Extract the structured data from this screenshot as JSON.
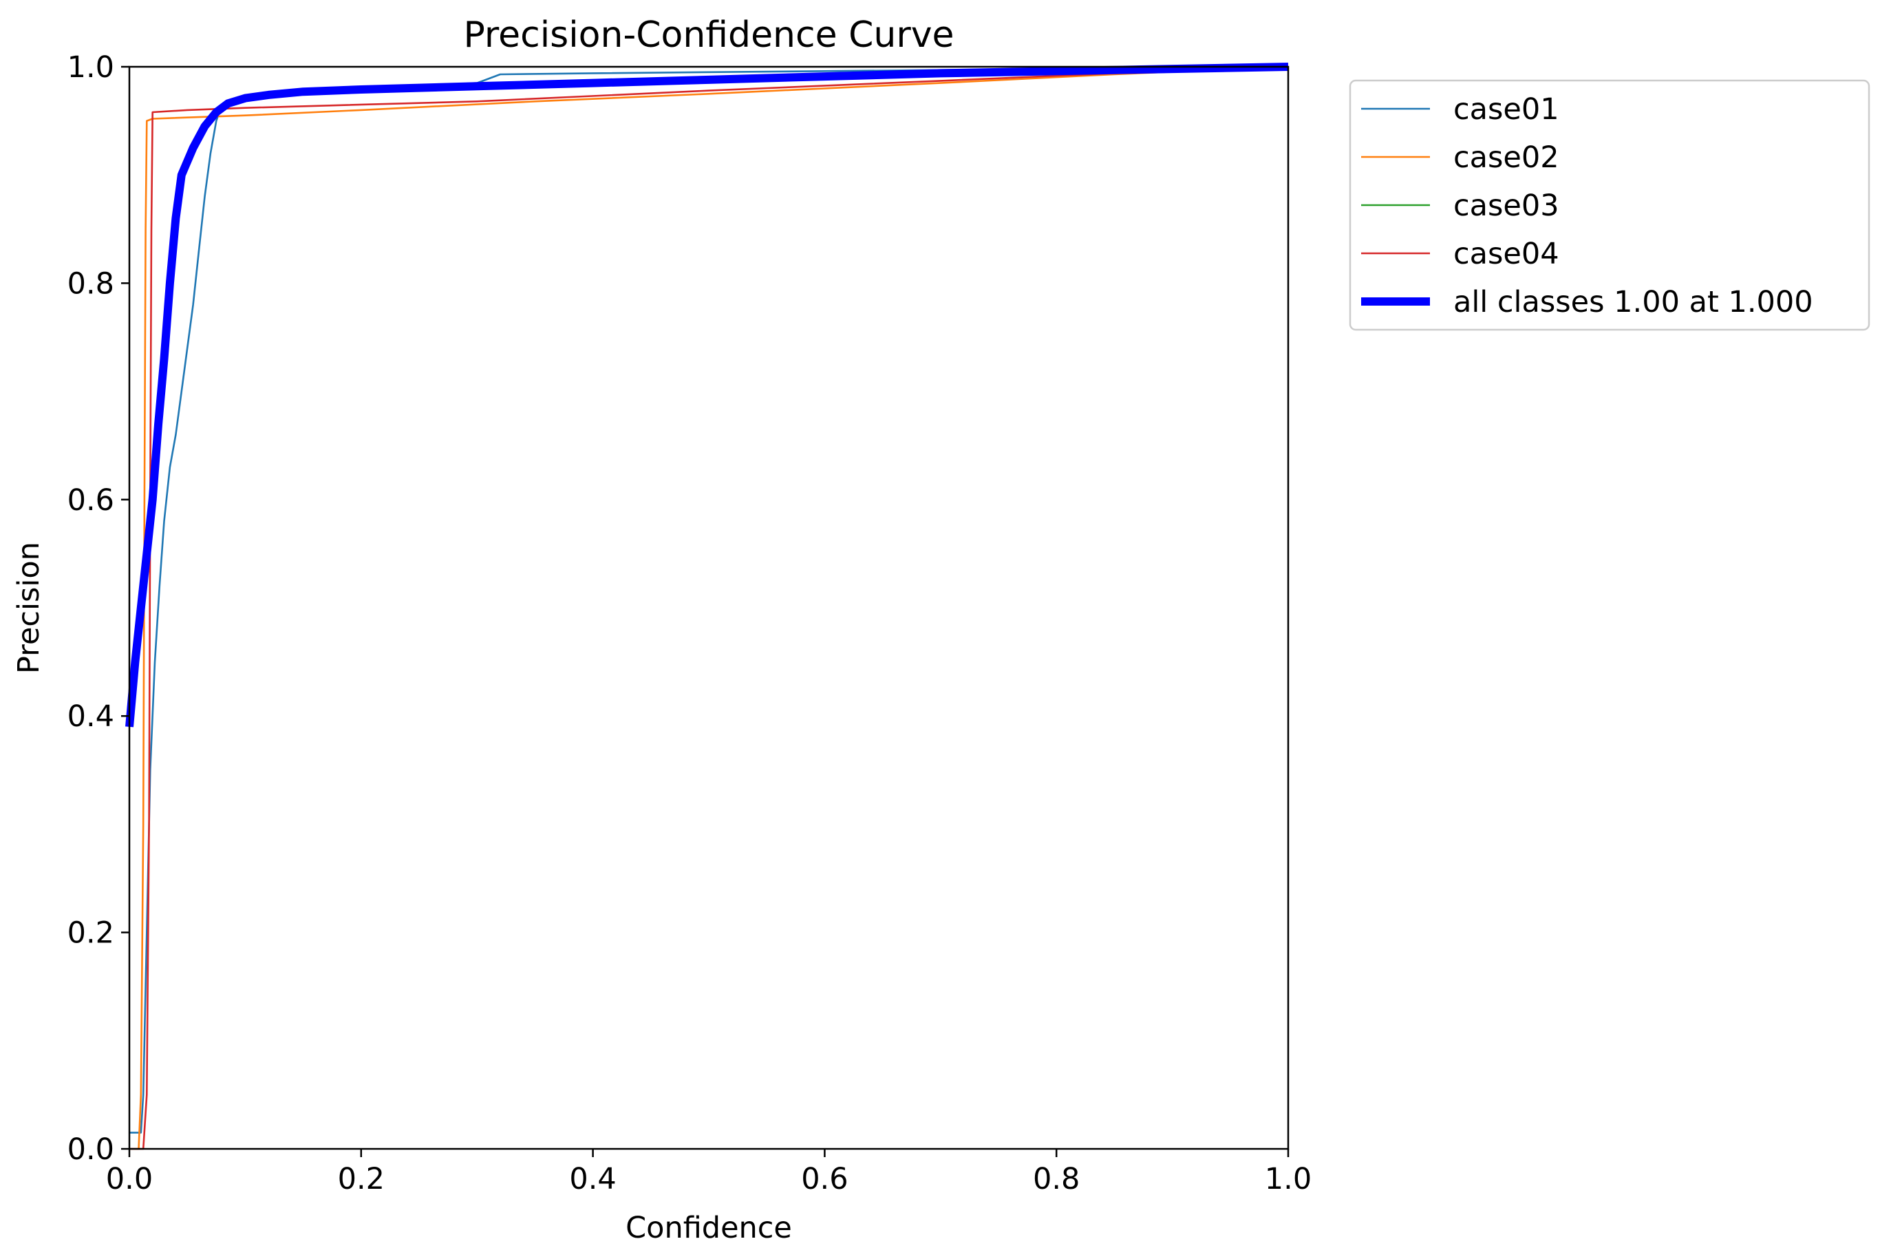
{
  "chart_data": {
    "type": "line",
    "title": "Precision-Confidence Curve",
    "xlabel": "Confidence",
    "ylabel": "Precision",
    "xlim": [
      0,
      1
    ],
    "ylim": [
      0,
      1
    ],
    "xticks": [
      "0.0",
      "0.2",
      "0.4",
      "0.6",
      "0.8",
      "1.0"
    ],
    "yticks": [
      "0.0",
      "0.2",
      "0.4",
      "0.6",
      "0.8",
      "1.0"
    ],
    "grid": false,
    "legend_position": "outside-top-right",
    "series": [
      {
        "name": "case01",
        "color": "#1f77b4",
        "width": "thin",
        "points": [
          [
            0.0,
            0.015
          ],
          [
            0.01,
            0.015
          ],
          [
            0.012,
            0.05
          ],
          [
            0.015,
            0.2
          ],
          [
            0.018,
            0.35
          ],
          [
            0.022,
            0.45
          ],
          [
            0.026,
            0.52
          ],
          [
            0.03,
            0.58
          ],
          [
            0.035,
            0.63
          ],
          [
            0.04,
            0.66
          ],
          [
            0.045,
            0.7
          ],
          [
            0.05,
            0.74
          ],
          [
            0.055,
            0.78
          ],
          [
            0.06,
            0.83
          ],
          [
            0.065,
            0.88
          ],
          [
            0.07,
            0.92
          ],
          [
            0.075,
            0.95
          ],
          [
            0.08,
            0.965
          ],
          [
            0.09,
            0.97
          ],
          [
            0.1,
            0.97
          ],
          [
            0.13,
            0.975
          ],
          [
            0.15,
            0.978
          ],
          [
            0.2,
            0.98
          ],
          [
            0.3,
            0.985
          ],
          [
            0.32,
            0.993
          ],
          [
            0.4,
            0.994
          ],
          [
            0.6,
            0.996
          ],
          [
            0.8,
            0.998
          ],
          [
            1.0,
            1.0
          ]
        ]
      },
      {
        "name": "case02",
        "color": "#ff7f0e",
        "width": "thin",
        "points": [
          [
            0.0,
            0.0
          ],
          [
            0.008,
            0.0
          ],
          [
            0.01,
            0.05
          ],
          [
            0.012,
            0.3
          ],
          [
            0.013,
            0.6
          ],
          [
            0.014,
            0.85
          ],
          [
            0.015,
            0.95
          ],
          [
            0.02,
            0.952
          ],
          [
            0.1,
            0.955
          ],
          [
            0.2,
            0.96
          ],
          [
            0.35,
            0.968
          ],
          [
            0.5,
            0.975
          ],
          [
            0.7,
            0.985
          ],
          [
            0.85,
            0.993
          ],
          [
            1.0,
            1.0
          ]
        ]
      },
      {
        "name": "case03",
        "color": "#2ca02c",
        "width": "thin",
        "points": []
      },
      {
        "name": "case04",
        "color": "#d62728",
        "width": "thin",
        "points": [
          [
            0.0,
            0.0
          ],
          [
            0.012,
            0.0
          ],
          [
            0.015,
            0.05
          ],
          [
            0.017,
            0.3
          ],
          [
            0.018,
            0.6
          ],
          [
            0.019,
            0.85
          ],
          [
            0.02,
            0.958
          ],
          [
            0.05,
            0.96
          ],
          [
            0.1,
            0.962
          ],
          [
            0.3,
            0.968
          ],
          [
            0.5,
            0.978
          ],
          [
            0.7,
            0.987
          ],
          [
            0.85,
            0.994
          ],
          [
            1.0,
            1.0
          ]
        ]
      },
      {
        "name": "all classes 1.00 at 1.000",
        "color": "#0000ff",
        "width": "thick",
        "points": [
          [
            0.0,
            0.39
          ],
          [
            0.005,
            0.45
          ],
          [
            0.01,
            0.5
          ],
          [
            0.015,
            0.55
          ],
          [
            0.02,
            0.6
          ],
          [
            0.025,
            0.67
          ],
          [
            0.03,
            0.73
          ],
          [
            0.035,
            0.8
          ],
          [
            0.04,
            0.86
          ],
          [
            0.045,
            0.9
          ],
          [
            0.055,
            0.925
          ],
          [
            0.065,
            0.945
          ],
          [
            0.075,
            0.958
          ],
          [
            0.085,
            0.966
          ],
          [
            0.1,
            0.971
          ],
          [
            0.12,
            0.974
          ],
          [
            0.15,
            0.977
          ],
          [
            0.2,
            0.979
          ],
          [
            0.3,
            0.982
          ],
          [
            0.4,
            0.985
          ],
          [
            0.5,
            0.988
          ],
          [
            0.6,
            0.991
          ],
          [
            0.7,
            0.994
          ],
          [
            0.8,
            0.996
          ],
          [
            0.9,
            0.998
          ],
          [
            1.0,
            1.0
          ]
        ]
      }
    ]
  }
}
